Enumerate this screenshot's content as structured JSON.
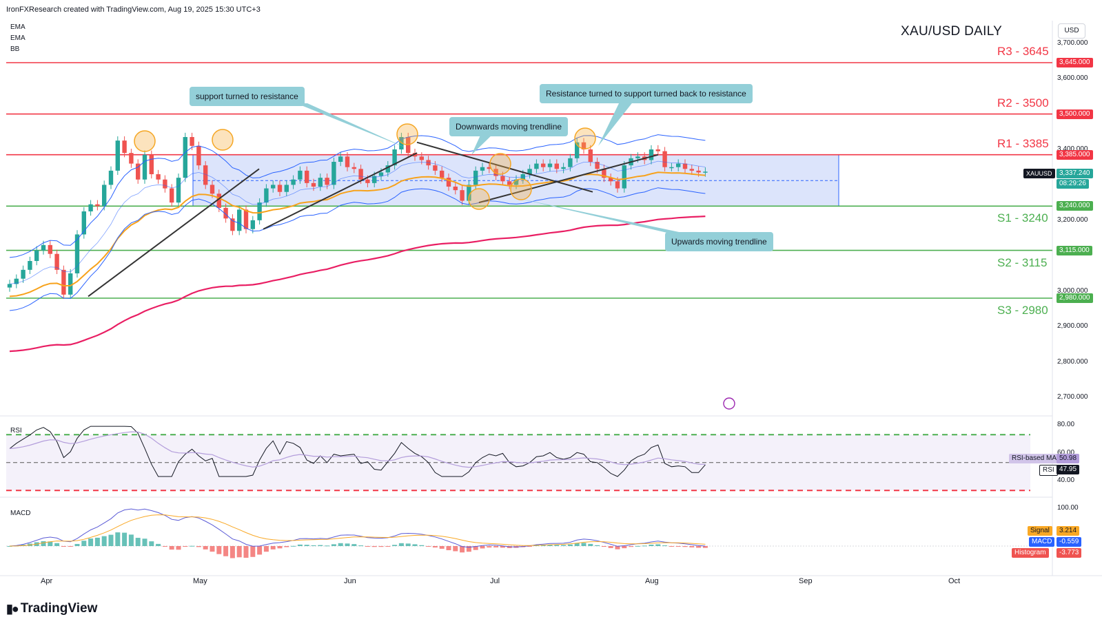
{
  "header": {
    "attribution": "IronFXResearch created with TradingView.com, Aug 19, 2025 15:30 UTC+3"
  },
  "indicators": [
    "EMA",
    "EMA",
    "BB"
  ],
  "chart_title": "XAU/USD DAILY",
  "currency_label": "USD",
  "brand": "TradingView",
  "colors": {
    "up": "#26a69a",
    "down": "#ef5350",
    "resistance": "#f23645",
    "support": "#4caf50",
    "ema_fast": "#f7a21b",
    "ema_slow": "#e91e63",
    "bb": "#2962ff",
    "box": "#b2c4f7",
    "note_bg": "#93cfd8",
    "rsi": "#131722",
    "rsi_ma": "#b39ddb",
    "macd": "#5b5bd6",
    "signal": "#f9a825"
  },
  "levels": [
    {
      "name": "R3 - 3645",
      "value": 3645,
      "tag": "3,645.000",
      "type": "resistance"
    },
    {
      "name": "R2 - 3500",
      "value": 3500,
      "tag": "3,500.000",
      "type": "resistance"
    },
    {
      "name": "R1 - 3385",
      "value": 3385,
      "tag": "3,385.000",
      "type": "resistance"
    },
    {
      "name": "S1 - 3240",
      "value": 3240,
      "tag": "3,240.000",
      "type": "support"
    },
    {
      "name": "S2 - 3115",
      "value": 3115,
      "tag": "3,115.000",
      "type": "support"
    },
    {
      "name": "S3 - 2980",
      "value": 2980,
      "tag": "2,980.000",
      "type": "support"
    }
  ],
  "annotations": {
    "support_resistance": "support turned to resistance",
    "downwards": "Downwards moving trendline",
    "resist_support": "Resistance turned to support turned back to resistance",
    "upwards": "Upwards moving trendline"
  },
  "price_tag": {
    "symbol": "XAUUSD",
    "price": "3,337.240",
    "countdown": "08:29:26"
  },
  "rsi_pane": {
    "label": "RSI",
    "ma_label": "RSI-based MA",
    "ma_value": "50.98",
    "rsi_label": "RSI",
    "rsi_value": "47.95",
    "ticks": [
      "80.00",
      "60.00",
      "40.00"
    ]
  },
  "macd_pane": {
    "label": "MACD",
    "tick": "100.00",
    "signal_label": "Signal",
    "signal_value": "3.214",
    "macd_label": "MACD",
    "macd_value": "-0.559",
    "hist_label": "Histogram",
    "hist_value": "-3.773"
  },
  "chart_data": {
    "type": "candlestick",
    "title": "XAU/USD DAILY",
    "ylim": [
      2640,
      3760
    ],
    "y_ticks": [
      "3,700.000",
      "3,600.000",
      "3,400.000",
      "3,200.000",
      "3,000.000",
      "2,900.000",
      "2,800.000",
      "2,700.000"
    ],
    "x_ticks": [
      "Apr",
      "May",
      "Jun",
      "Jul",
      "Aug",
      "Sep",
      "Oct"
    ],
    "closes": [
      3020,
      3035,
      3060,
      3085,
      3115,
      3130,
      3105,
      3060,
      2990,
      3050,
      3160,
      3225,
      3245,
      3240,
      3300,
      3340,
      3425,
      3390,
      3360,
      3315,
      3385,
      3330,
      3315,
      3290,
      3250,
      3320,
      3435,
      3410,
      3355,
      3300,
      3275,
      3235,
      3205,
      3170,
      3230,
      3175,
      3200,
      3250,
      3290,
      3300,
      3280,
      3300,
      3315,
      3340,
      3305,
      3295,
      3320,
      3300,
      3365,
      3380,
      3350,
      3345,
      3315,
      3305,
      3325,
      3335,
      3355,
      3400,
      3435,
      3390,
      3380,
      3370,
      3355,
      3340,
      3320,
      3295,
      3285,
      3255,
      3300,
      3340,
      3350,
      3345,
      3325,
      3310,
      3300,
      3315,
      3330,
      3345,
      3360,
      3350,
      3360,
      3345,
      3350,
      3375,
      3420,
      3400,
      3365,
      3345,
      3320,
      3310,
      3290,
      3355,
      3375,
      3380,
      3370,
      3400,
      3395,
      3350,
      3350,
      3360,
      3345,
      3340,
      3335,
      3337.24
    ],
    "ema_fast_end": 3330,
    "ema_slow_end": 3260,
    "bb_upper_end": 3420,
    "bb_lower_end": 3275,
    "rsi": {
      "ylim": [
        20,
        85
      ],
      "overbought": 70,
      "oversold": 30,
      "mid": 50,
      "ma_last": 50.98,
      "last": 47.95
    },
    "macd": {
      "signal_last": 3.214,
      "macd_last": -0.559,
      "hist_last": -3.773
    }
  }
}
